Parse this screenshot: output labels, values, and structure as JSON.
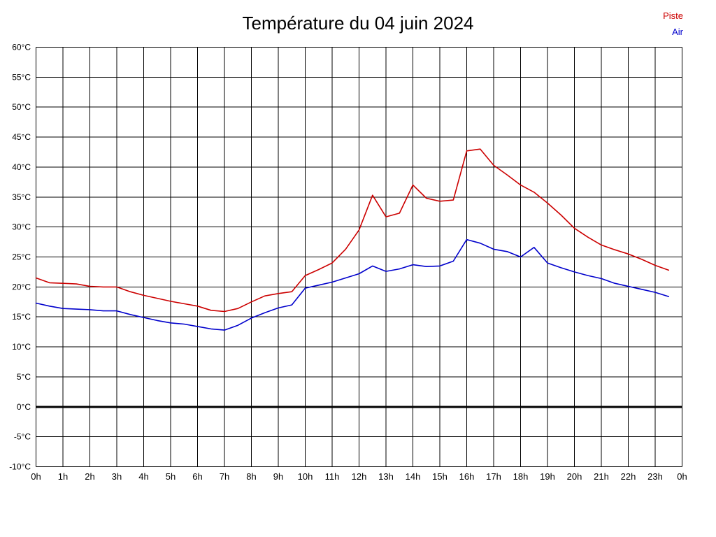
{
  "chart_data": {
    "type": "line",
    "title": "Température du 04 juin 2024",
    "xlabel": "",
    "ylabel": "",
    "xlim": [
      0,
      24
    ],
    "ylim": [
      -10,
      60
    ],
    "grid": true,
    "legend_position": "top-right",
    "y_ticks": [
      60,
      55,
      50,
      45,
      40,
      35,
      30,
      25,
      20,
      15,
      10,
      5,
      0,
      -5,
      -10
    ],
    "y_tick_suffix": "°C",
    "x_tick_labels": [
      "0h",
      "1h",
      "2h",
      "3h",
      "4h",
      "5h",
      "6h",
      "7h",
      "8h",
      "9h",
      "10h",
      "11h",
      "12h",
      "13h",
      "14h",
      "15h",
      "16h",
      "17h",
      "18h",
      "19h",
      "20h",
      "21h",
      "22h",
      "23h",
      "0h"
    ],
    "zero_line_value": 0,
    "x_start": 0,
    "x_step_hours": 0.5,
    "series": [
      {
        "name": "Piste",
        "color": "#cc0000",
        "values": [
          21.5,
          20.7,
          20.6,
          20.5,
          20.1,
          20.0,
          20.0,
          19.2,
          18.6,
          18.1,
          17.6,
          17.2,
          16.8,
          16.1,
          15.9,
          16.4,
          17.5,
          18.5,
          18.9,
          19.2,
          21.9,
          22.9,
          24.0,
          26.3,
          29.5,
          35.3,
          31.7,
          32.3,
          37.0,
          34.8,
          34.3,
          34.5,
          42.7,
          43.0,
          40.3,
          38.7,
          37.0,
          35.8,
          34.0,
          32.0,
          29.8,
          28.3,
          27.0,
          26.2,
          25.5,
          24.6,
          23.6,
          22.8
        ]
      },
      {
        "name": "Air",
        "color": "#0000cc",
        "values": [
          17.3,
          16.8,
          16.4,
          16.3,
          16.2,
          16.0,
          16.0,
          15.4,
          14.9,
          14.4,
          14.0,
          13.8,
          13.4,
          13.0,
          12.8,
          13.6,
          14.8,
          15.7,
          16.5,
          17.0,
          19.8,
          20.3,
          20.8,
          21.5,
          22.2,
          23.5,
          22.6,
          23.0,
          23.7,
          23.4,
          23.5,
          24.3,
          27.9,
          27.3,
          26.3,
          25.9,
          25.0,
          26.6,
          24.0,
          23.2,
          22.5,
          21.9,
          21.4,
          20.6,
          20.1,
          19.6,
          19.1,
          18.4
        ]
      }
    ]
  }
}
